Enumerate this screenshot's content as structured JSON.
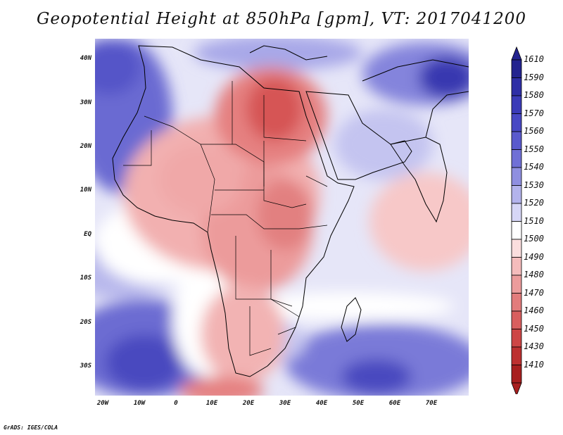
{
  "title": "Geopotential Height at 850hPa [gpm], VT: 2017041200",
  "credit": "GrADS: IGES/COLA",
  "y_ticks": [
    "40N",
    "30N",
    "20N",
    "10N",
    "EQ",
    "10S",
    "20S",
    "30S"
  ],
  "x_ticks": [
    "20W",
    "10W",
    "0",
    "10E",
    "20E",
    "30E",
    "40E",
    "50E",
    "60E",
    "70E"
  ],
  "colorbar": {
    "labels": [
      "1610",
      "1590",
      "1580",
      "1570",
      "1560",
      "1550",
      "1540",
      "1530",
      "1520",
      "1510",
      "1500",
      "1490",
      "1480",
      "1470",
      "1460",
      "1450",
      "1430",
      "1410"
    ],
    "colors": [
      "#23238f",
      "#2e2ea6",
      "#3b3bb8",
      "#4848c4",
      "#5a5acd",
      "#7070d6",
      "#8f8fe0",
      "#b3b3ec",
      "#d6d6f6",
      "#ffffff",
      "#fbdede",
      "#f5bcbc",
      "#ec9c9c",
      "#e27c7c",
      "#d85f5f",
      "#cd4545",
      "#bd3030",
      "#a81f1f"
    ]
  }
}
